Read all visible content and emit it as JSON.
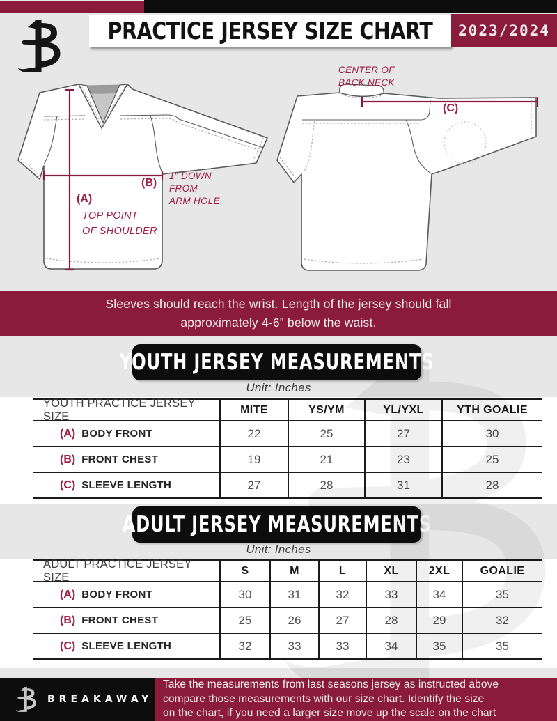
{
  "colors": {
    "maroon": "#8b1b3c",
    "accent": "#9e1d44",
    "ink": "#0d0d0d",
    "page_gray": "#e8e7e7"
  },
  "icons": {
    "brand_logo": "breakaway-b-monogram"
  },
  "header": {
    "title": "PRACTICE JERSEY SIZE CHART",
    "season": "2023/2024"
  },
  "diagram": {
    "front": {
      "label_a": "(A)",
      "label_a_note_lines": [
        "TOP POINT",
        "OF SHOULDER"
      ],
      "label_b": "(B)",
      "label_b_note_lines": [
        "1\" DOWN",
        "FROM",
        "ARM HOLE"
      ]
    },
    "back": {
      "label_c": "(C)",
      "note_lines": [
        "CENTER OF",
        "BACK NECK"
      ]
    }
  },
  "notice_banner": {
    "lines": [
      "Sleeves should reach the wrist. Length of the jersey should fall",
      "approximately 4-6” below the waist."
    ]
  },
  "youth_section": {
    "banner": "YOUTH JERSEY MEASUREMENTS",
    "unit": "Unit: Inches",
    "table": {
      "header": [
        "YOUTH PRACTICE JERSEY SIZE",
        "MITE",
        "YS/YM",
        "YL/YXL",
        "YTH GOALIE"
      ],
      "rows": [
        {
          "key": "(A)",
          "label": "BODY FRONT",
          "values": [
            "22",
            "25",
            "27",
            "30"
          ]
        },
        {
          "key": "(B)",
          "label": "FRONT CHEST",
          "values": [
            "19",
            "21",
            "23",
            "25"
          ]
        },
        {
          "key": "(C)",
          "label": "SLEEVE LENGTH",
          "values": [
            "27",
            "28",
            "31",
            "28"
          ]
        }
      ]
    }
  },
  "adult_section": {
    "banner": "ADULT JERSEY MEASUREMENTS",
    "unit": "Unit: Inches",
    "table": {
      "header": [
        "ADULT PRACTICE JERSEY SIZE",
        "S",
        "M",
        "L",
        "XL",
        "2XL",
        "GOALIE"
      ],
      "rows": [
        {
          "key": "(A)",
          "label": "BODY FRONT",
          "values": [
            "30",
            "31",
            "32",
            "33",
            "34",
            "35"
          ]
        },
        {
          "key": "(B)",
          "label": "FRONT CHEST",
          "values": [
            "25",
            "26",
            "27",
            "28",
            "29",
            "32"
          ]
        },
        {
          "key": "(C)",
          "label": "SLEEVE LENGTH",
          "values": [
            "32",
            "33",
            "33",
            "34",
            "35",
            "35"
          ]
        }
      ]
    }
  },
  "footer": {
    "brand": "BREAKAWAY",
    "lines": [
      "Take the measurements from last seasons jersey as instructed above",
      "compare those measurements  with our size chart. Identify the size",
      "on the chart, if you need a larger size move up the scale on the chart"
    ]
  }
}
